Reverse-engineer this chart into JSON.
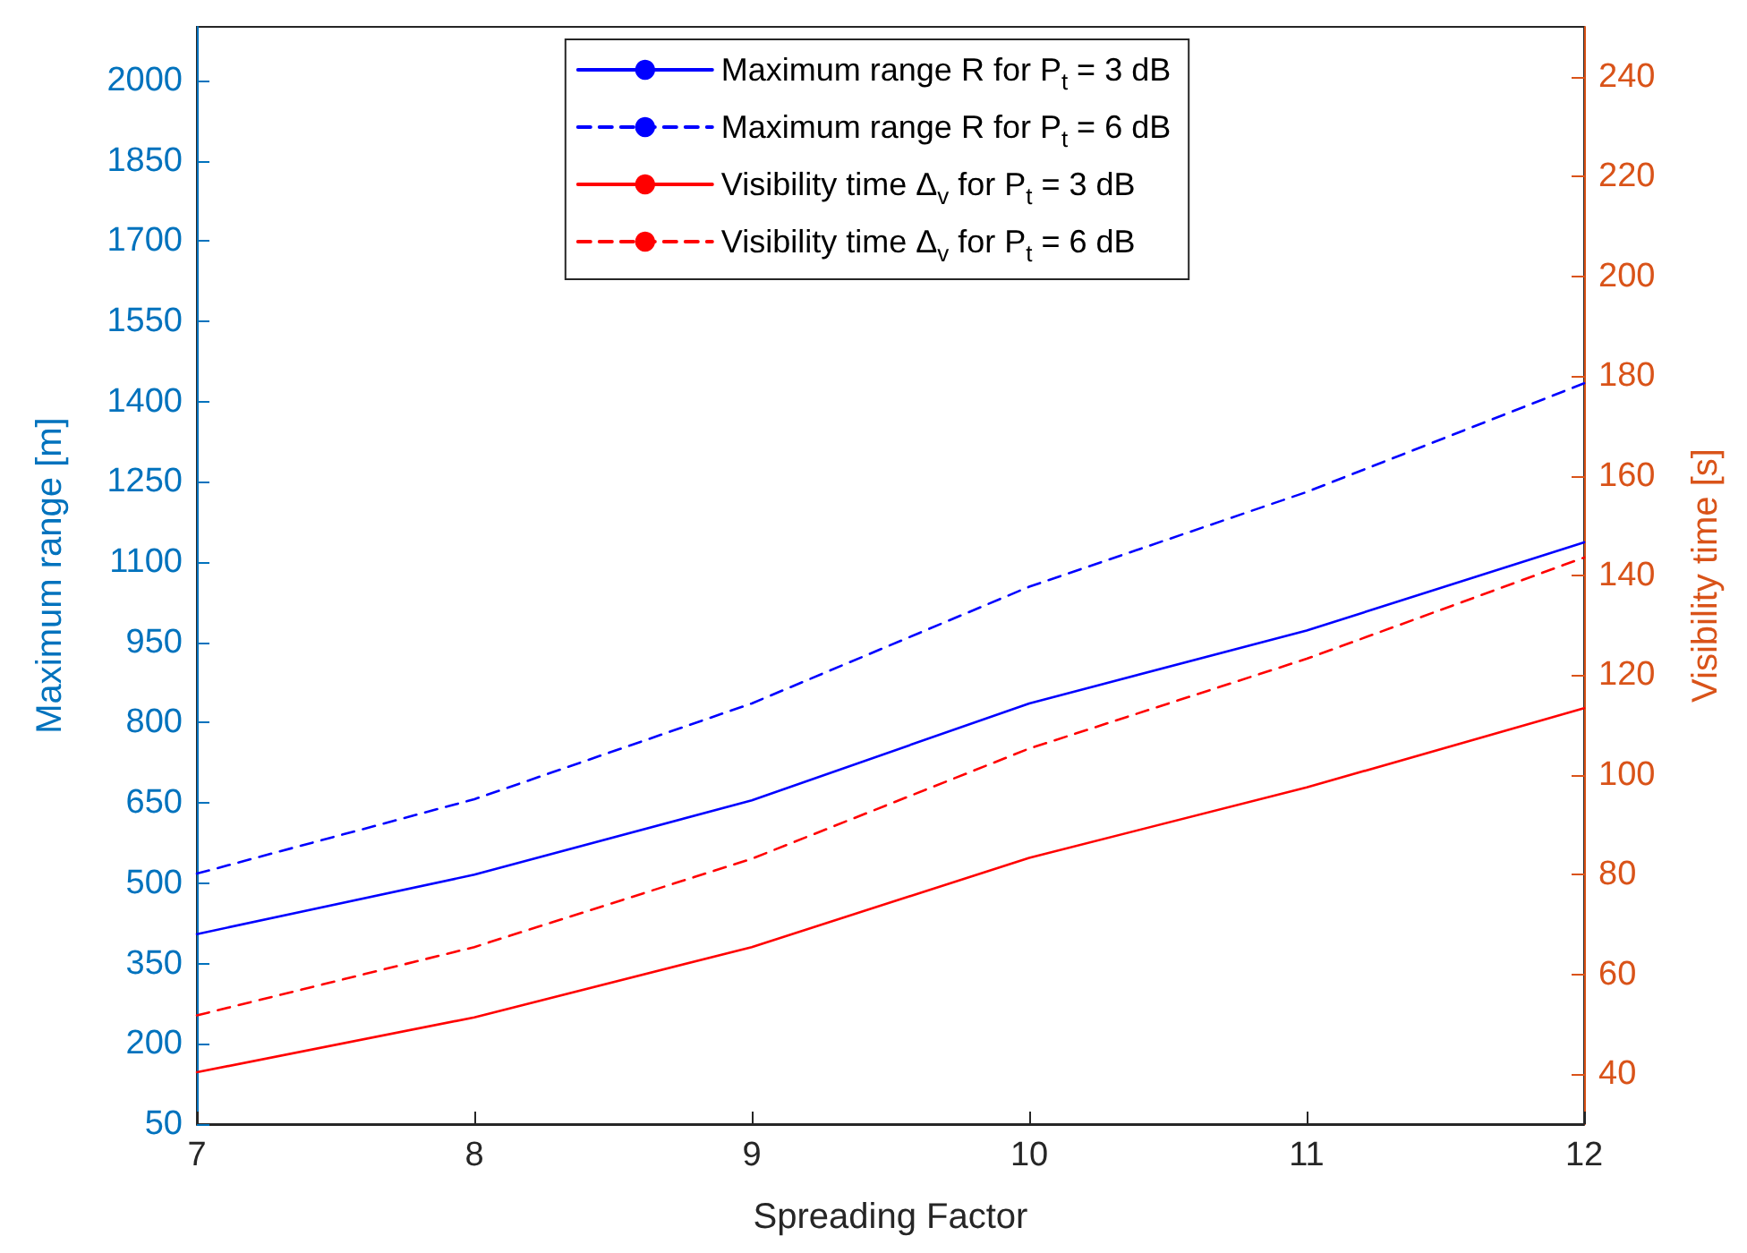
{
  "chart_data": {
    "type": "line",
    "xlabel": "Spreading Factor",
    "ylabel": "Maximum range [m]",
    "y2label": "Visibility time [s]",
    "x": [
      7,
      8,
      9,
      10,
      11,
      12
    ],
    "series": [
      {
        "name": "Maximum range R for P$_{t}$ = 3 dB",
        "color": "#0000ff",
        "line_style": "solid",
        "values": [
          405,
          516,
          655,
          836,
          972,
          1137
        ]
      },
      {
        "name": "Maximum range R for P$_{t}$ = 6 dB",
        "color": "#0000ff",
        "line_style": "dashed",
        "values": [
          518,
          657,
          836,
          1054,
          1231,
          1434
        ]
      },
      {
        "name": "Visibility time Δ$_{v}$ for P$_{t}$ = 3 dB",
        "color": "#ff0000",
        "line_style": "solid",
        "axis": "y2",
        "values": [
          40.4,
          51.4,
          65.5,
          83.4,
          97.5,
          113.4
        ]
      },
      {
        "name": "Visibility time Δ$_{v}$ for P$_{t}$ = 6 dB",
        "color": "#ff0000",
        "line_style": "dashed",
        "axis": "y2",
        "values": [
          51.8,
          65.5,
          83.2,
          105.3,
          123.3,
          143.6
        ]
      }
    ],
    "xlim": [
      7,
      12
    ],
    "xticks": [
      7,
      8,
      9,
      10,
      11,
      12
    ],
    "ylim": [
      50,
      2100
    ],
    "yticks": [
      50,
      200,
      350,
      500,
      650,
      800,
      950,
      1100,
      1250,
      1400,
      1550,
      1700,
      1850,
      2000
    ],
    "y2lim": [
      30,
      250
    ],
    "y2ticks": [
      40,
      60,
      80,
      100,
      120,
      140,
      160,
      180,
      200,
      220,
      240
    ],
    "grid": false,
    "legend": "top",
    "marker": "none"
  }
}
